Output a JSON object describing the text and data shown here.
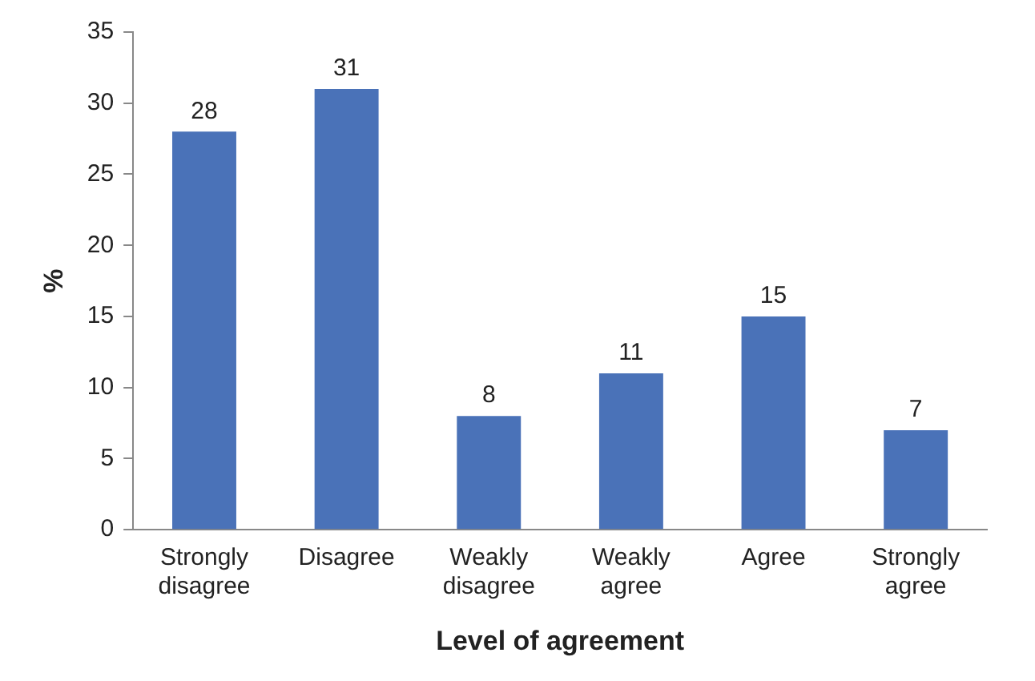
{
  "chart_data": {
    "type": "bar",
    "xlabel": "Level of agreement",
    "ylabel": "%",
    "categories": [
      "Strongly disagree",
      "Disagree",
      "Weakly disagree",
      "Weakly agree",
      "Agree",
      "Strongly agree"
    ],
    "values": [
      28,
      31,
      8,
      11,
      15,
      7
    ],
    "color": "#4a72b8",
    "ylim": [
      0,
      35
    ],
    "yticks": [
      0,
      5,
      10,
      15,
      20,
      25,
      30,
      35
    ],
    "grid": false,
    "legend": false,
    "data_labels": true
  }
}
